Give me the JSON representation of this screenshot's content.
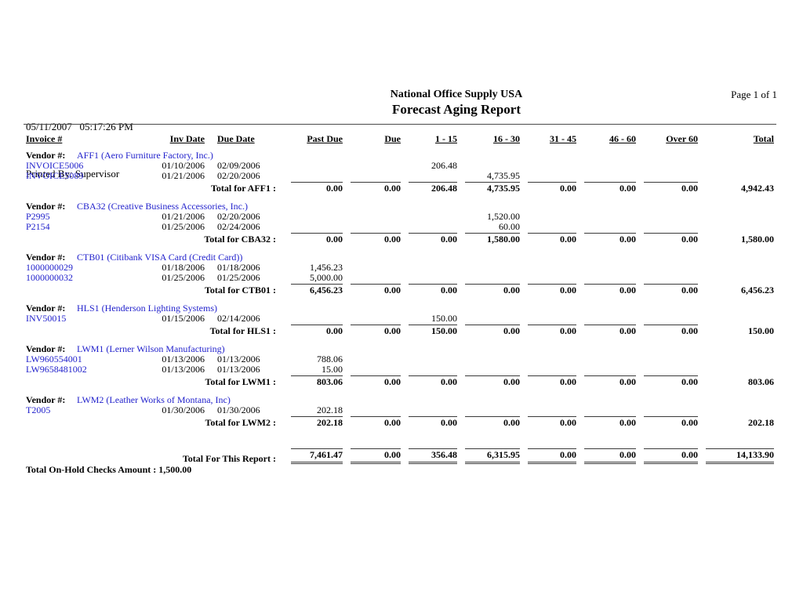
{
  "header": {
    "datetime": "05/11/2007   05:17:26 PM",
    "printed_by": "Printed By: Supervisor",
    "company": "National Office Supply USA",
    "report_title": "Forecast Aging Report",
    "page": "Page 1 of 1"
  },
  "table": {
    "columns": [
      "Invoice #",
      "Inv Date",
      "Due Date",
      "Past Due",
      "Due",
      "1 - 15",
      "16 - 30",
      "31 - 45",
      "46 - 60",
      "Over 60",
      "Total"
    ],
    "vendor_label": "Vendor #:",
    "groups": [
      {
        "vendor_code": "AFF1",
        "vendor_name": "AFF1 (Aero Furniture Factory, Inc.)",
        "rows": [
          {
            "invoice": "INVOICE5006",
            "inv_date": "01/10/2006",
            "due_date": "02/09/2006",
            "amounts": [
              "",
              "",
              "206.48",
              "",
              "",
              "",
              ""
            ]
          },
          {
            "invoice": "INVOICE5089",
            "inv_date": "01/21/2006",
            "due_date": "02/20/2006",
            "amounts": [
              "",
              "",
              "",
              "4,735.95",
              "",
              "",
              ""
            ]
          }
        ],
        "total_label": "Total for AFF1 :",
        "totals": [
          "0.00",
          "0.00",
          "206.48",
          "4,735.95",
          "0.00",
          "0.00",
          "0.00",
          "4,942.43"
        ]
      },
      {
        "vendor_code": "CBA32",
        "vendor_name": "CBA32 (Creative Business Accessories, Inc.)",
        "rows": [
          {
            "invoice": "P2995",
            "inv_date": "01/21/2006",
            "due_date": "02/20/2006",
            "amounts": [
              "",
              "",
              "",
              "1,520.00",
              "",
              "",
              ""
            ]
          },
          {
            "invoice": "P2154",
            "inv_date": "01/25/2006",
            "due_date": "02/24/2006",
            "amounts": [
              "",
              "",
              "",
              "60.00",
              "",
              "",
              ""
            ]
          }
        ],
        "total_label": "Total for CBA32 :",
        "totals": [
          "0.00",
          "0.00",
          "0.00",
          "1,580.00",
          "0.00",
          "0.00",
          "0.00",
          "1,580.00"
        ]
      },
      {
        "vendor_code": "CTB01",
        "vendor_name": "CTB01 (Citibank VISA Card (Credit Card))",
        "rows": [
          {
            "invoice": "1000000029",
            "inv_date": "01/18/2006",
            "due_date": "01/18/2006",
            "amounts": [
              "1,456.23",
              "",
              "",
              "",
              "",
              "",
              ""
            ]
          },
          {
            "invoice": "1000000032",
            "inv_date": "01/25/2006",
            "due_date": "01/25/2006",
            "amounts": [
              "5,000.00",
              "",
              "",
              "",
              "",
              "",
              ""
            ]
          }
        ],
        "total_label": "Total for CTB01 :",
        "totals": [
          "6,456.23",
          "0.00",
          "0.00",
          "0.00",
          "0.00",
          "0.00",
          "0.00",
          "6,456.23"
        ]
      },
      {
        "vendor_code": "HLS1",
        "vendor_name": "HLS1 (Henderson Lighting Systems)",
        "rows": [
          {
            "invoice": "INV50015",
            "inv_date": "01/15/2006",
            "due_date": "02/14/2006",
            "amounts": [
              "",
              "",
              "150.00",
              "",
              "",
              "",
              ""
            ]
          }
        ],
        "total_label": "Total for HLS1 :",
        "totals": [
          "0.00",
          "0.00",
          "150.00",
          "0.00",
          "0.00",
          "0.00",
          "0.00",
          "150.00"
        ]
      },
      {
        "vendor_code": "LWM1",
        "vendor_name": "LWM1 (Lerner Wilson Manufacturing)",
        "rows": [
          {
            "invoice": "LW960554001",
            "inv_date": "01/13/2006",
            "due_date": "01/13/2006",
            "amounts": [
              "788.06",
              "",
              "",
              "",
              "",
              "",
              ""
            ]
          },
          {
            "invoice": "LW9658481002",
            "inv_date": "01/13/2006",
            "due_date": "01/13/2006",
            "amounts": [
              "15.00",
              "",
              "",
              "",
              "",
              "",
              ""
            ]
          }
        ],
        "total_label": "Total for LWM1 :",
        "totals": [
          "803.06",
          "0.00",
          "0.00",
          "0.00",
          "0.00",
          "0.00",
          "0.00",
          "803.06"
        ]
      },
      {
        "vendor_code": "LWM2",
        "vendor_name": "LWM2 (Leather Works of Montana, Inc)",
        "rows": [
          {
            "invoice": "T2005",
            "inv_date": "01/30/2006",
            "due_date": "01/30/2006",
            "amounts": [
              "202.18",
              "",
              "",
              "",
              "",
              "",
              ""
            ]
          }
        ],
        "total_label": "Total for LWM2 :",
        "totals": [
          "202.18",
          "0.00",
          "0.00",
          "0.00",
          "0.00",
          "0.00",
          "0.00",
          "202.18"
        ]
      }
    ],
    "report_total_label": "Total For This Report :",
    "report_totals": [
      "7,461.47",
      "0.00",
      "356.48",
      "6,315.95",
      "0.00",
      "0.00",
      "0.00",
      "14,133.90"
    ]
  },
  "footer_note": "Total On-Hold Checks Amount : 1,500.00",
  "colors": {
    "link": "#2222CC",
    "text": "#000000",
    "rule": "#4a4a4a"
  }
}
